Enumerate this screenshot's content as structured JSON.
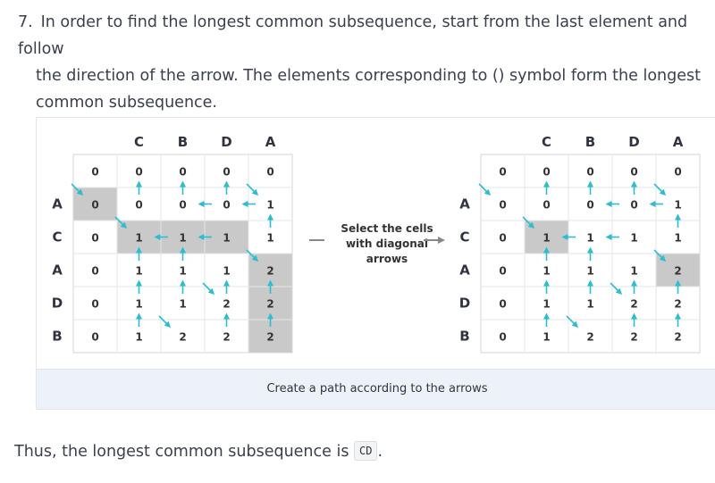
{
  "step": {
    "number": "7.",
    "line1": "In order to find the longest common subsequence, start from the last element and follow",
    "line2": "the direction of the arrow. The elements corresponding to () symbol form the longest",
    "line3": "common subsequence."
  },
  "figure": {
    "middle_text": [
      "Select the cells",
      "with diagonal",
      "arrows"
    ],
    "caption": "Create a path according to the arrows",
    "col_headers": [
      "C",
      "B",
      "D",
      "A"
    ],
    "row_headers": [
      "A",
      "C",
      "A",
      "D",
      "B"
    ],
    "table": [
      [
        "0",
        "0",
        "0",
        "0",
        "0"
      ],
      [
        "0",
        "0",
        "0",
        "0",
        "1"
      ],
      [
        "0",
        "1",
        "1",
        "1",
        "1"
      ],
      [
        "0",
        "1",
        "1",
        "1",
        "2"
      ],
      [
        "0",
        "1",
        "1",
        "2",
        "2"
      ],
      [
        "0",
        "1",
        "2",
        "2",
        "2"
      ]
    ]
  },
  "conclusion": {
    "text": "Thus, the longest common subsequence is",
    "answer": "CD",
    "end": "."
  }
}
